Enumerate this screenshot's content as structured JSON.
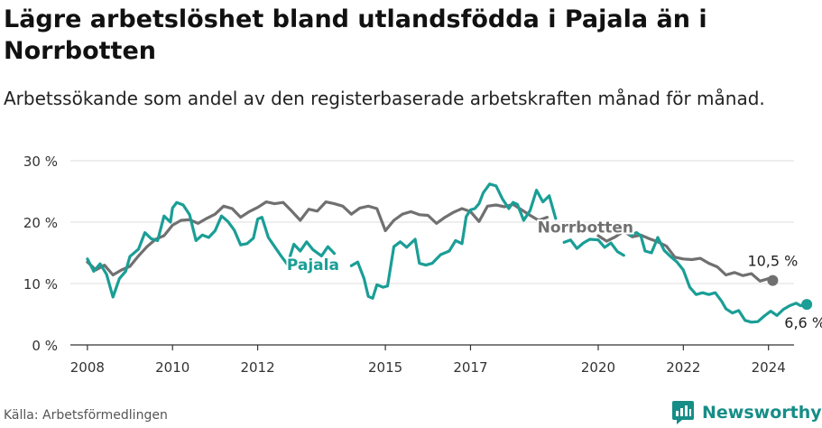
{
  "title": "Lägre arbetslöshet bland utlandsfödda i Pajala än i Norrbotten",
  "subtitle": "Arbetssökande som andel av den registerbaserade arbetskraften månad för månad.",
  "source": "Källa: Arbetsförmedlingen",
  "brand": {
    "name": "Newsworthy",
    "icon": "newsworthy-logo-icon",
    "color": "#168d87"
  },
  "colors": {
    "pajala": "#1a9e96",
    "norrbotten": "#707070",
    "grid": "#dddddd",
    "axis": "#333333"
  },
  "chart_data": {
    "type": "line",
    "title": "Lägre arbetslöshet bland utlandsfödda i Pajala än i Norrbotten",
    "ylabel": "",
    "xlabel": "",
    "ylim": [
      0,
      30
    ],
    "xlim": [
      2007.6,
      2024.6
    ],
    "y_ticks": [
      {
        "value": 0,
        "label": "0 %"
      },
      {
        "value": 10,
        "label": "10 %"
      },
      {
        "value": 20,
        "label": "20 %"
      },
      {
        "value": 30,
        "label": "30 %"
      }
    ],
    "x_ticks": [
      {
        "value": 2008,
        "label": "2008"
      },
      {
        "value": 2010,
        "label": "2010"
      },
      {
        "value": 2012,
        "label": "2012"
      },
      {
        "value": 2015,
        "label": "2015"
      },
      {
        "value": 2017,
        "label": "2017"
      },
      {
        "value": 2020,
        "label": "2020"
      },
      {
        "value": 2022,
        "label": "2022"
      },
      {
        "value": 2024,
        "label": "2024"
      }
    ],
    "series": [
      {
        "name": "Norrbotten",
        "label": "Norrbotten",
        "end_label": "10,5 %",
        "segments": [
          [
            [
              2008.0,
              13.5
            ],
            [
              2008.2,
              12.2
            ],
            [
              2008.4,
              13.0
            ],
            [
              2008.6,
              11.4
            ],
            [
              2008.8,
              12.2
            ],
            [
              2009.0,
              12.8
            ],
            [
              2009.2,
              14.5
            ],
            [
              2009.4,
              16.0
            ],
            [
              2009.6,
              17.2
            ],
            [
              2009.8,
              17.8
            ],
            [
              2010.0,
              19.5
            ],
            [
              2010.2,
              20.3
            ],
            [
              2010.4,
              20.4
            ],
            [
              2010.6,
              19.8
            ],
            [
              2010.8,
              20.6
            ],
            [
              2011.0,
              21.3
            ],
            [
              2011.2,
              22.6
            ],
            [
              2011.4,
              22.2
            ],
            [
              2011.6,
              20.8
            ],
            [
              2011.8,
              21.7
            ],
            [
              2012.0,
              22.4
            ],
            [
              2012.2,
              23.3
            ],
            [
              2012.4,
              23.0
            ],
            [
              2012.6,
              23.2
            ],
            [
              2012.8,
              21.8
            ],
            [
              2013.0,
              20.3
            ],
            [
              2013.2,
              22.1
            ],
            [
              2013.4,
              21.8
            ],
            [
              2013.6,
              23.3
            ],
            [
              2013.8,
              23.0
            ],
            [
              2014.0,
              22.6
            ],
            [
              2014.2,
              21.3
            ],
            [
              2014.4,
              22.3
            ],
            [
              2014.6,
              22.6
            ],
            [
              2014.8,
              22.2
            ],
            [
              2015.0,
              18.6
            ],
            [
              2015.2,
              20.3
            ],
            [
              2015.4,
              21.3
            ],
            [
              2015.6,
              21.7
            ],
            [
              2015.8,
              21.2
            ],
            [
              2016.0,
              21.1
            ],
            [
              2016.2,
              19.8
            ],
            [
              2016.4,
              20.8
            ],
            [
              2016.6,
              21.6
            ],
            [
              2016.8,
              22.2
            ],
            [
              2017.0,
              21.7
            ],
            [
              2017.2,
              20.1
            ],
            [
              2017.4,
              22.6
            ],
            [
              2017.6,
              22.8
            ],
            [
              2017.8,
              22.5
            ],
            [
              2018.0,
              22.9
            ],
            [
              2018.2,
              22.0
            ],
            [
              2018.4,
              21.1
            ],
            [
              2018.6,
              20.3
            ],
            [
              2018.8,
              20.8
            ]
          ],
          [
            [
              2020.0,
              17.8
            ],
            [
              2020.2,
              16.9
            ],
            [
              2020.4,
              17.6
            ],
            [
              2020.6,
              18.5
            ],
            [
              2020.8,
              17.6
            ],
            [
              2021.0,
              17.9
            ],
            [
              2021.2,
              17.3
            ],
            [
              2021.4,
              16.8
            ],
            [
              2021.6,
              16.1
            ],
            [
              2021.8,
              14.3
            ],
            [
              2022.0,
              14.0
            ],
            [
              2022.2,
              13.9
            ],
            [
              2022.4,
              14.1
            ],
            [
              2022.6,
              13.3
            ],
            [
              2022.8,
              12.7
            ],
            [
              2023.0,
              11.4
            ],
            [
              2023.2,
              11.8
            ],
            [
              2023.4,
              11.3
            ],
            [
              2023.6,
              11.6
            ],
            [
              2023.8,
              10.4
            ],
            [
              2024.0,
              10.8
            ],
            [
              2024.1,
              10.5
            ]
          ]
        ]
      },
      {
        "name": "Pajala",
        "label": "Pajala",
        "end_label": "6,6 %",
        "segments": [
          [
            [
              2008.0,
              14.0
            ],
            [
              2008.15,
              12.0
            ],
            [
              2008.3,
              13.2
            ],
            [
              2008.45,
              11.5
            ],
            [
              2008.6,
              7.8
            ],
            [
              2008.75,
              10.8
            ],
            [
              2008.9,
              12.0
            ],
            [
              2009.0,
              14.4
            ],
            [
              2009.2,
              15.6
            ],
            [
              2009.35,
              18.3
            ],
            [
              2009.5,
              17.3
            ],
            [
              2009.65,
              17.0
            ],
            [
              2009.8,
              21.0
            ],
            [
              2009.95,
              20.0
            ],
            [
              2010.0,
              22.3
            ],
            [
              2010.1,
              23.2
            ],
            [
              2010.25,
              22.8
            ],
            [
              2010.4,
              21.2
            ],
            [
              2010.55,
              17.0
            ],
            [
              2010.7,
              17.9
            ],
            [
              2010.85,
              17.5
            ],
            [
              2011.0,
              18.6
            ],
            [
              2011.15,
              21.0
            ],
            [
              2011.3,
              20.1
            ],
            [
              2011.45,
              18.7
            ],
            [
              2011.6,
              16.3
            ],
            [
              2011.75,
              16.5
            ],
            [
              2011.9,
              17.4
            ],
            [
              2012.0,
              20.5
            ],
            [
              2012.1,
              20.8
            ],
            [
              2012.25,
              17.5
            ],
            [
              2012.4,
              16.0
            ],
            [
              2012.55,
              14.5
            ],
            [
              2012.7,
              13.1
            ],
            [
              2012.85,
              16.4
            ],
            [
              2013.0,
              15.3
            ],
            [
              2013.15,
              16.8
            ],
            [
              2013.3,
              15.5
            ],
            [
              2013.5,
              14.5
            ],
            [
              2013.65,
              16.0
            ],
            [
              2013.8,
              14.9
            ]
          ],
          [
            [
              2014.2,
              12.9
            ],
            [
              2014.35,
              13.5
            ],
            [
              2014.5,
              10.8
            ],
            [
              2014.6,
              7.9
            ],
            [
              2014.7,
              7.6
            ],
            [
              2014.8,
              9.8
            ],
            [
              2014.95,
              9.4
            ],
            [
              2015.05,
              9.6
            ],
            [
              2015.2,
              16.0
            ],
            [
              2015.35,
              16.8
            ],
            [
              2015.5,
              15.9
            ],
            [
              2015.7,
              17.2
            ],
            [
              2015.8,
              13.3
            ],
            [
              2015.95,
              13.0
            ],
            [
              2016.1,
              13.3
            ],
            [
              2016.3,
              14.7
            ],
            [
              2016.5,
              15.3
            ],
            [
              2016.65,
              17.0
            ],
            [
              2016.8,
              16.5
            ],
            [
              2016.9,
              20.9
            ],
            [
              2017.0,
              22.0
            ],
            [
              2017.1,
              22.2
            ],
            [
              2017.2,
              23.0
            ],
            [
              2017.3,
              24.8
            ],
            [
              2017.45,
              26.2
            ],
            [
              2017.6,
              25.9
            ],
            [
              2017.75,
              23.8
            ],
            [
              2017.9,
              22.2
            ],
            [
              2018.0,
              23.2
            ],
            [
              2018.1,
              22.9
            ],
            [
              2018.25,
              20.3
            ],
            [
              2018.4,
              21.9
            ],
            [
              2018.55,
              25.2
            ],
            [
              2018.7,
              23.3
            ],
            [
              2018.85,
              24.3
            ],
            [
              2019.0,
              20.6
            ]
          ],
          [
            [
              2019.2,
              16.7
            ],
            [
              2019.35,
              17.1
            ],
            [
              2019.5,
              15.7
            ],
            [
              2019.65,
              16.6
            ],
            [
              2019.8,
              17.2
            ],
            [
              2020.0,
              17.1
            ],
            [
              2020.15,
              15.9
            ],
            [
              2020.3,
              16.6
            ],
            [
              2020.45,
              15.2
            ],
            [
              2020.6,
              14.6
            ]
          ],
          [
            [
              2020.75,
              17.8
            ],
            [
              2020.9,
              18.3
            ],
            [
              2021.0,
              17.8
            ],
            [
              2021.1,
              15.3
            ],
            [
              2021.25,
              15.0
            ],
            [
              2021.4,
              17.5
            ],
            [
              2021.55,
              15.4
            ],
            [
              2021.7,
              14.4
            ],
            [
              2021.85,
              13.5
            ],
            [
              2022.0,
              12.2
            ],
            [
              2022.15,
              9.4
            ],
            [
              2022.3,
              8.2
            ],
            [
              2022.45,
              8.5
            ],
            [
              2022.6,
              8.2
            ],
            [
              2022.75,
              8.5
            ],
            [
              2022.9,
              7.1
            ],
            [
              2023.0,
              5.9
            ],
            [
              2023.15,
              5.2
            ],
            [
              2023.3,
              5.6
            ],
            [
              2023.45,
              4.0
            ],
            [
              2023.6,
              3.7
            ],
            [
              2023.75,
              3.8
            ],
            [
              2023.9,
              4.7
            ],
            [
              2024.05,
              5.5
            ],
            [
              2024.2,
              4.8
            ],
            [
              2024.35,
              5.8
            ],
            [
              2024.5,
              6.4
            ],
            [
              2024.65,
              6.8
            ],
            [
              2024.75,
              6.4
            ],
            [
              2024.9,
              6.6
            ]
          ]
        ]
      }
    ]
  }
}
